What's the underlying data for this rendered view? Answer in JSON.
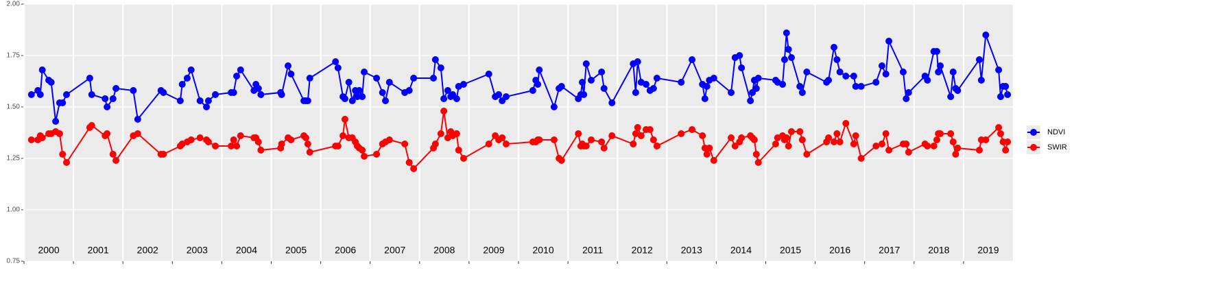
{
  "chart_data": {
    "type": "line",
    "xlim": [
      2000,
      2020
    ],
    "ylim": [
      0.75,
      2.0
    ],
    "yticks": [
      0.75,
      {
        "value": 1,
        "label": "1.00"
      },
      1.25,
      {
        "value": 1.5,
        "label": "1.50"
      },
      1.75,
      {
        "value": 2,
        "label": "2.00"
      }
    ],
    "xticks": [
      {
        "value": 2000,
        "label": "2000"
      },
      {
        "value": 2001,
        "label": "2001"
      },
      {
        "value": 2002,
        "label": "2002"
      },
      {
        "value": 2003,
        "label": "2003"
      },
      {
        "value": 2004,
        "label": "2004"
      },
      {
        "value": 2005,
        "label": "2005"
      },
      {
        "value": 2006,
        "label": "2006"
      },
      {
        "value": 2007,
        "label": "2007"
      },
      {
        "value": 2008,
        "label": "2008"
      },
      {
        "value": 2009,
        "label": "2009"
      },
      {
        "value": 2010,
        "label": "2010"
      },
      {
        "value": 2011,
        "label": "2011"
      },
      {
        "value": 2012,
        "label": "2012"
      },
      {
        "value": 2013,
        "label": "2013"
      },
      {
        "value": 2014,
        "label": "2014"
      },
      {
        "value": 2015,
        "label": "2015"
      },
      {
        "value": 2016,
        "label": "2016"
      },
      {
        "value": 2017,
        "label": "2017"
      },
      {
        "value": 2018,
        "label": "2018"
      },
      {
        "value": 2019,
        "label": "2019"
      }
    ],
    "grid": true,
    "legend_position": "right",
    "x": [
      2000.15,
      2000.28,
      2000.33,
      2000.37,
      2000.5,
      2000.55,
      2000.64,
      2000.72,
      2000.78,
      2000.86,
      2001.33,
      2001.37,
      2001.64,
      2001.68,
      2001.8,
      2001.86,
      2002.21,
      2002.3,
      2002.77,
      2002.82,
      2003.16,
      2003.2,
      2003.3,
      2003.38,
      2003.56,
      2003.69,
      2003.73,
      2003.87,
      2004.19,
      2004.24,
      2004.3,
      2004.38,
      2004.65,
      2004.69,
      2004.74,
      2004.79,
      2005.19,
      2005.21,
      2005.34,
      2005.4,
      2005.66,
      2005.7,
      2005.74,
      2005.78,
      2006.3,
      2006.35,
      2006.45,
      2006.49,
      2006.57,
      2006.64,
      2006.7,
      2006.74,
      2006.78,
      2006.84,
      2006.88,
      2007.13,
      2007.25,
      2007.31,
      2007.39,
      2007.7,
      2007.79,
      2007.88,
      2008.28,
      2008.32,
      2008.43,
      2008.49,
      2008.57,
      2008.63,
      2008.67,
      2008.75,
      2008.79,
      2008.89,
      2009.4,
      2009.53,
      2009.6,
      2009.67,
      2009.75,
      2010.29,
      2010.35,
      2010.39,
      2010.42,
      2010.72,
      2010.82,
      2010.87,
      2011.21,
      2011.26,
      2011.29,
      2011.32,
      2011.37,
      2011.47,
      2011.68,
      2011.73,
      2011.89,
      2012.32,
      2012.37,
      2012.41,
      2012.48,
      2012.58,
      2012.66,
      2012.73,
      2012.8,
      2013.29,
      2013.51,
      2013.72,
      2013.77,
      2013.81,
      2013.86,
      2013.95,
      2014.3,
      2014.38,
      2014.47,
      2014.51,
      2014.69,
      2014.73,
      2014.77,
      2014.81,
      2014.85,
      2015.2,
      2015.24,
      2015.34,
      2015.38,
      2015.42,
      2015.46,
      2015.52,
      2015.69,
      2015.74,
      2015.83,
      2016.23,
      2016.27,
      2016.38,
      2016.44,
      2016.5,
      2016.62,
      2016.78,
      2016.82,
      2016.93,
      2017.23,
      2017.35,
      2017.43,
      2017.49,
      2017.78,
      2017.84,
      2017.89,
      2018.22,
      2018.27,
      2018.4,
      2018.46,
      2018.49,
      2018.53,
      2018.74,
      2018.79,
      2018.84,
      2018.88,
      2019.32,
      2019.36,
      2019.45,
      2019.71,
      2019.75,
      2019.8,
      2019.85,
      2019.89
    ],
    "series": [
      {
        "name": "NDVI",
        "color": "#0000ff",
        "values": [
          1.56,
          1.58,
          1.56,
          1.68,
          1.63,
          1.62,
          1.43,
          1.52,
          1.52,
          1.56,
          1.64,
          1.56,
          1.54,
          1.5,
          1.54,
          1.59,
          1.58,
          1.44,
          1.58,
          1.57,
          1.53,
          1.61,
          1.64,
          1.68,
          1.53,
          1.5,
          1.53,
          1.56,
          1.57,
          1.57,
          1.65,
          1.68,
          1.58,
          1.61,
          1.59,
          1.56,
          1.57,
          1.56,
          1.7,
          1.66,
          1.53,
          1.53,
          1.53,
          1.64,
          1.72,
          1.69,
          1.55,
          1.54,
          1.62,
          1.53,
          1.58,
          1.55,
          1.58,
          1.55,
          1.67,
          1.64,
          1.57,
          1.53,
          1.62,
          1.57,
          1.58,
          1.64,
          1.64,
          1.73,
          1.69,
          1.54,
          1.58,
          1.55,
          1.56,
          1.54,
          1.6,
          1.61,
          1.66,
          1.55,
          1.56,
          1.53,
          1.55,
          1.58,
          1.63,
          1.61,
          1.68,
          1.5,
          1.59,
          1.6,
          1.54,
          1.56,
          1.62,
          1.56,
          1.71,
          1.63,
          1.67,
          1.59,
          1.52,
          1.71,
          1.57,
          1.72,
          1.62,
          1.61,
          1.58,
          1.59,
          1.64,
          1.62,
          1.73,
          1.61,
          1.54,
          1.6,
          1.63,
          1.64,
          1.57,
          1.74,
          1.75,
          1.69,
          1.53,
          1.57,
          1.63,
          1.59,
          1.64,
          1.63,
          1.62,
          1.61,
          1.73,
          1.86,
          1.78,
          1.74,
          1.6,
          1.57,
          1.67,
          1.62,
          1.63,
          1.79,
          1.73,
          1.67,
          1.65,
          1.65,
          1.6,
          1.6,
          1.62,
          1.7,
          1.66,
          1.82,
          1.67,
          1.54,
          1.57,
          1.65,
          1.63,
          1.77,
          1.77,
          1.67,
          1.7,
          1.55,
          1.67,
          1.59,
          1.58,
          1.73,
          1.63,
          1.85,
          1.68,
          1.55,
          1.6,
          1.6,
          1.56
        ]
      },
      {
        "name": "SWIR",
        "color": "#ff0000",
        "values": [
          1.34,
          1.34,
          1.36,
          1.35,
          1.37,
          1.37,
          1.38,
          1.37,
          1.27,
          1.23,
          1.4,
          1.41,
          1.36,
          1.37,
          1.27,
          1.24,
          1.36,
          1.37,
          1.27,
          1.27,
          1.31,
          1.32,
          1.33,
          1.34,
          1.35,
          1.34,
          1.33,
          1.31,
          1.31,
          1.34,
          1.31,
          1.36,
          1.35,
          1.35,
          1.33,
          1.29,
          1.3,
          1.32,
          1.35,
          1.34,
          1.36,
          1.35,
          1.32,
          1.28,
          1.31,
          1.31,
          1.36,
          1.44,
          1.35,
          1.35,
          1.33,
          1.31,
          1.3,
          1.29,
          1.26,
          1.27,
          1.32,
          1.33,
          1.34,
          1.32,
          1.23,
          1.2,
          1.3,
          1.32,
          1.37,
          1.48,
          1.35,
          1.38,
          1.36,
          1.37,
          1.29,
          1.25,
          1.32,
          1.36,
          1.34,
          1.35,
          1.32,
          1.33,
          1.33,
          1.34,
          1.34,
          1.34,
          1.25,
          1.24,
          1.37,
          1.31,
          1.32,
          1.31,
          1.31,
          1.34,
          1.33,
          1.3,
          1.36,
          1.32,
          1.37,
          1.4,
          1.36,
          1.39,
          1.39,
          1.34,
          1.31,
          1.37,
          1.39,
          1.36,
          1.3,
          1.27,
          1.3,
          1.24,
          1.35,
          1.31,
          1.33,
          1.35,
          1.36,
          1.35,
          1.34,
          1.27,
          1.23,
          1.32,
          1.35,
          1.36,
          1.34,
          1.35,
          1.31,
          1.38,
          1.38,
          1.34,
          1.27,
          1.33,
          1.35,
          1.33,
          1.37,
          1.33,
          1.42,
          1.32,
          1.36,
          1.25,
          1.31,
          1.32,
          1.37,
          1.29,
          1.32,
          1.32,
          1.28,
          1.32,
          1.31,
          1.31,
          1.34,
          1.37,
          1.37,
          1.37,
          1.33,
          1.27,
          1.3,
          1.29,
          1.34,
          1.34,
          1.4,
          1.37,
          1.33,
          1.29,
          1.33
        ]
      }
    ]
  }
}
